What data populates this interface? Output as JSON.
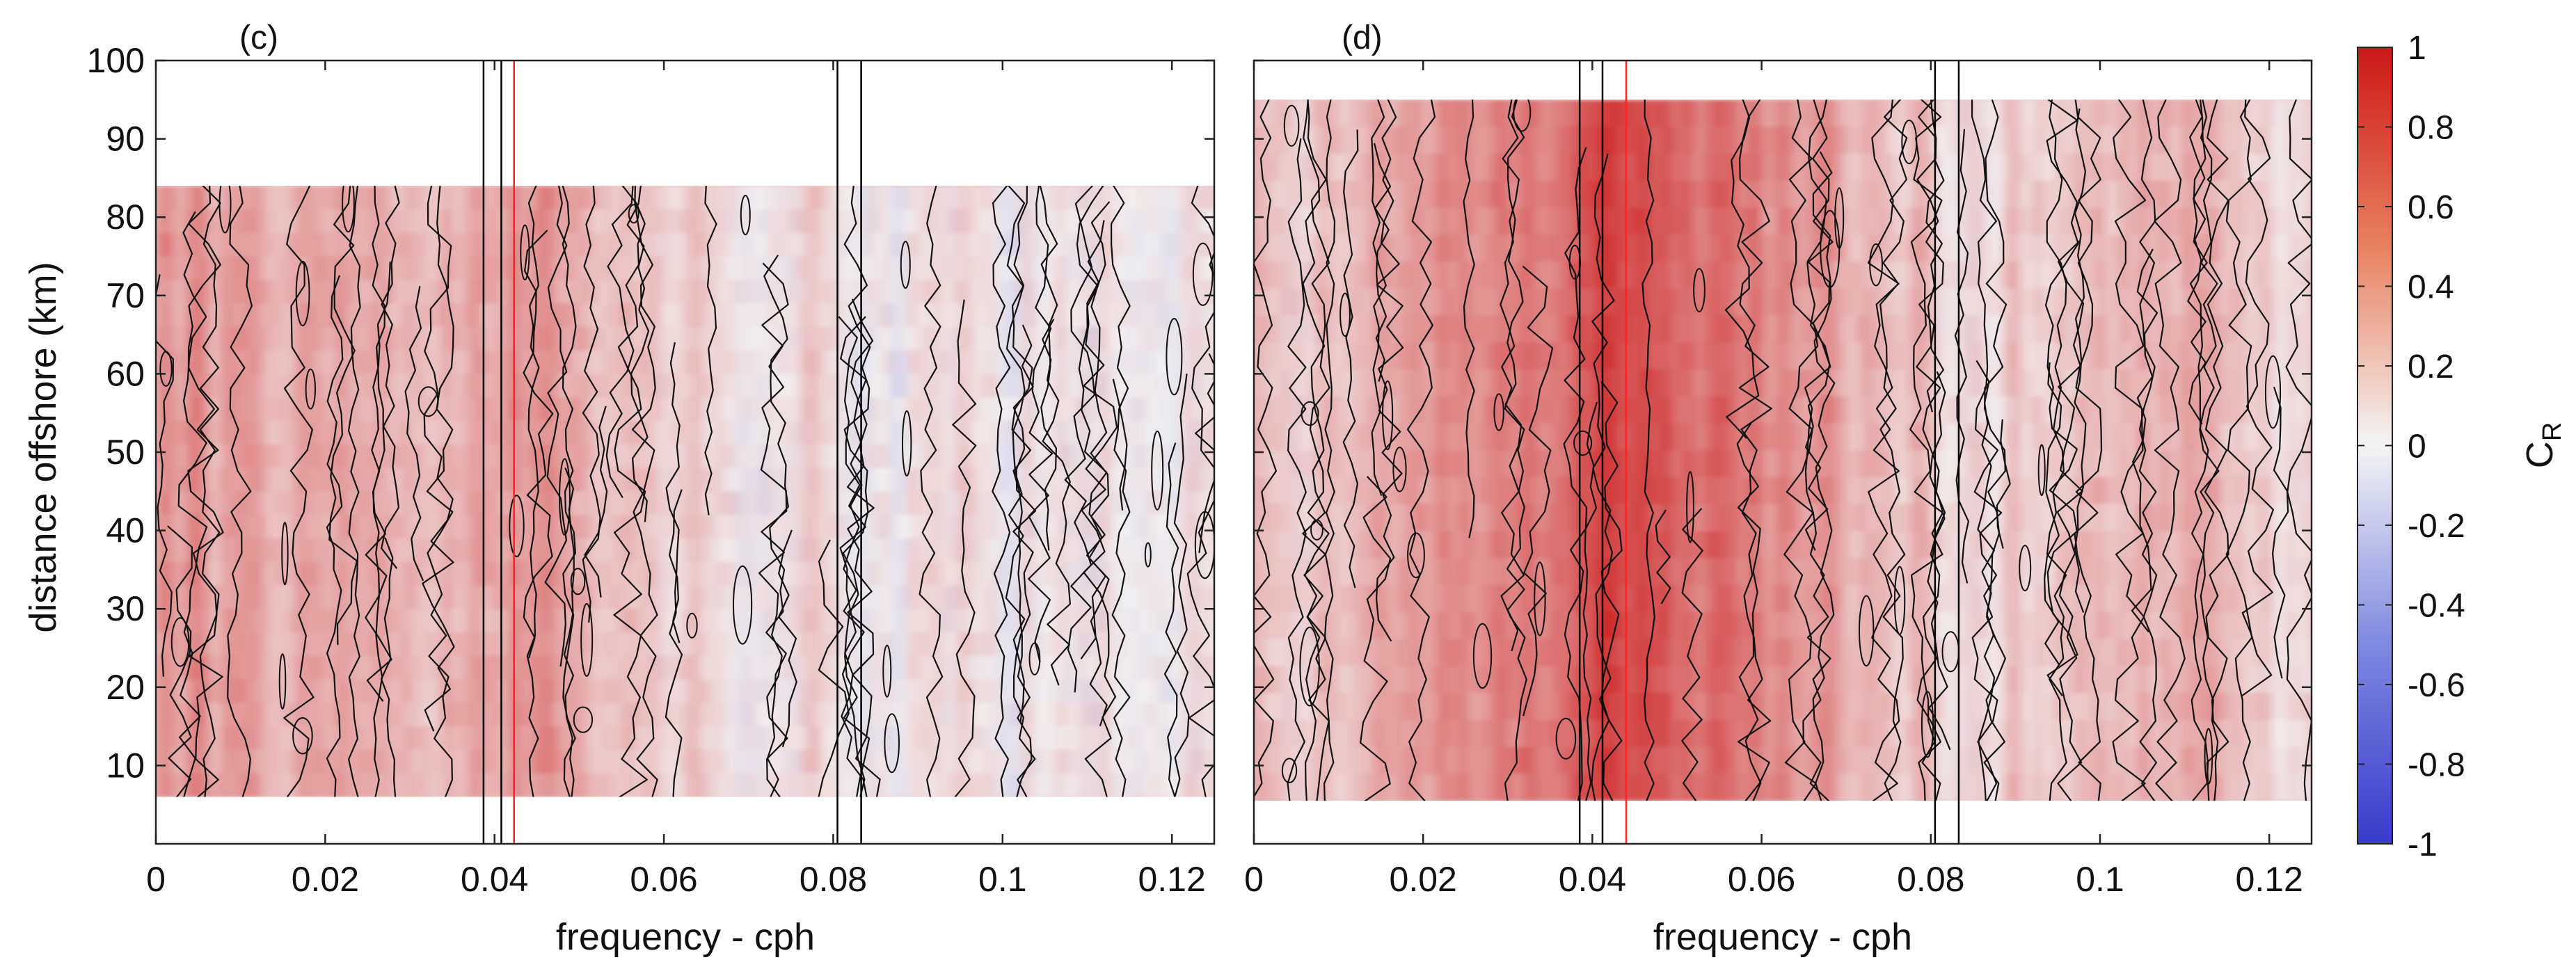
{
  "chart_data": [
    {
      "type": "heatmap",
      "panel_label": "(c)",
      "xlabel": "frequency - cph",
      "ylabel": "distance offshore (km)",
      "xlim": [
        0,
        0.125
      ],
      "ylim": [
        0,
        100
      ],
      "data_y_range": [
        6,
        84
      ],
      "x_ticks": [
        0,
        0.02,
        0.04,
        0.06,
        0.08,
        0.1,
        0.12
      ],
      "x_tick_labels": [
        "0",
        "0.02",
        "0.04",
        "0.06",
        "0.08",
        "0.1",
        "0.12"
      ],
      "y_ticks": [
        10,
        20,
        30,
        40,
        50,
        60,
        70,
        80,
        90,
        100
      ],
      "y_tick_labels": [
        "10",
        "20",
        "30",
        "40",
        "50",
        "60",
        "70",
        "80",
        "90",
        "100"
      ],
      "vertical_lines_black": [
        0.0387,
        0.0408,
        0.0805,
        0.0833
      ],
      "vertical_lines_red": [
        0.0423
      ],
      "profile_x": [
        0,
        0.01,
        0.02,
        0.03,
        0.038,
        0.041,
        0.045,
        0.05,
        0.06,
        0.07,
        0.08,
        0.083,
        0.09,
        0.1,
        0.11,
        0.12,
        0.125
      ],
      "profile_cr": [
        0.45,
        0.32,
        0.38,
        0.34,
        0.3,
        0.45,
        0.42,
        0.3,
        0.18,
        0.02,
        0.15,
        -0.1,
        0.08,
        0.02,
        0.05,
        0.08,
        0.1
      ]
    },
    {
      "type": "heatmap",
      "panel_label": "(d)",
      "xlabel": "frequency - cph",
      "ylabel": "",
      "xlim": [
        0,
        0.125
      ],
      "ylim": [
        0,
        100
      ],
      "data_y_range": [
        5.5,
        95
      ],
      "x_ticks": [
        0,
        0.02,
        0.04,
        0.06,
        0.08,
        0.1,
        0.12
      ],
      "x_tick_labels": [
        "0",
        "0.02",
        "0.04",
        "0.06",
        "0.08",
        "0.1",
        "0.12"
      ],
      "vertical_lines_black": [
        0.0385,
        0.0412,
        0.0805,
        0.0833
      ],
      "vertical_lines_red": [
        0.044
      ],
      "profile_x": [
        0,
        0.005,
        0.01,
        0.02,
        0.03,
        0.038,
        0.042,
        0.05,
        0.06,
        0.07,
        0.08,
        0.083,
        0.09,
        0.1,
        0.11,
        0.12,
        0.125
      ],
      "profile_cr": [
        0.3,
        0.12,
        0.3,
        0.4,
        0.55,
        0.6,
        0.82,
        0.7,
        0.55,
        0.35,
        0.25,
        0.1,
        0.25,
        0.3,
        0.35,
        0.2,
        0.15
      ]
    }
  ],
  "colorbar": {
    "label": "C",
    "label_subscript": "R",
    "range": [
      -1,
      1
    ],
    "ticks": [
      1,
      0.8,
      0.6,
      0.4,
      0.2,
      0,
      -0.2,
      -0.4,
      -0.6,
      -0.8,
      -1
    ],
    "tick_labels": [
      "1",
      "0.8",
      "0.6",
      "0.4",
      "0.2",
      "0",
      "-0.2",
      "-0.4",
      "-0.6",
      "-0.8",
      "-1"
    ],
    "colors": {
      "low": "#3b3bcc",
      "mid": "#f4f4f4",
      "high": "#cc1818"
    }
  },
  "line_colors": {
    "black": "#000000",
    "red": "#ff2222"
  }
}
